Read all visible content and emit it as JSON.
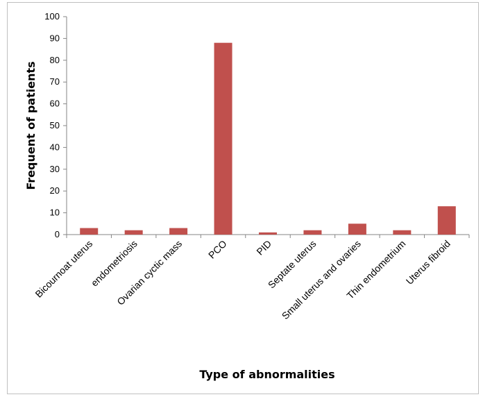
{
  "chart_data": {
    "type": "bar",
    "categories": [
      "Bicournoat uterus",
      "endometriosis",
      "Ovarian cyctic mass",
      "PCO",
      "PID",
      "Septate uterus",
      "Small uterus and ovaries",
      "Thin endometrium",
      "Uterus fibroid"
    ],
    "series": [
      {
        "values": [
          3,
          2,
          3,
          88,
          1,
          2,
          5,
          2,
          13
        ],
        "color": "#c0504d"
      }
    ],
    "xlabel": "Type of abnormalities",
    "ylabel": "Frequent of patients",
    "ylim": [
      0,
      100
    ],
    "yticks": [
      0,
      10,
      20,
      30,
      40,
      50,
      60,
      70,
      80,
      90,
      100
    ],
    "grid": false,
    "legend": "none"
  }
}
